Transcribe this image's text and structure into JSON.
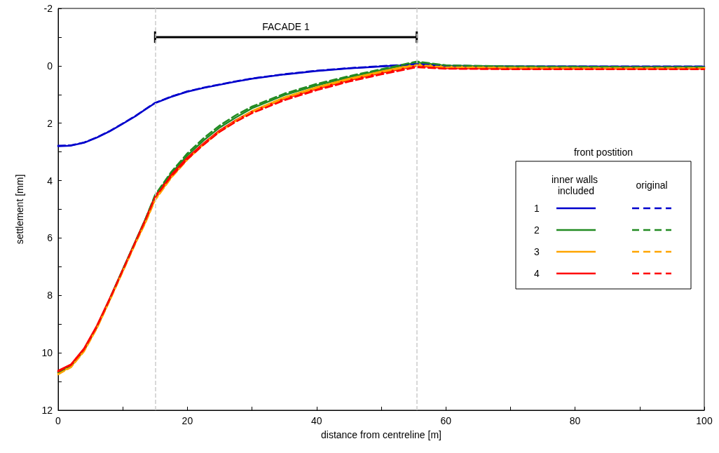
{
  "chart_data": {
    "type": "line",
    "xlabel": "distance from centreline [m]",
    "ylabel": "settlement [mm]",
    "legend": "right",
    "legend_title": "front postition",
    "annotations": [
      "inner walls included",
      "original"
    ],
    "xlim": [
      0,
      100
    ],
    "xticks": [
      0,
      {
        "value": 10,
        "label": null
      },
      20,
      {
        "value": 30,
        "label": null
      },
      40,
      {
        "value": 50,
        "label": null
      },
      60,
      {
        "value": 70,
        "label": null
      },
      80,
      {
        "value": 90,
        "label": null
      },
      100
    ],
    "ylim": [
      12,
      -2
    ],
    "yticks": [
      -2,
      {
        "value": -1,
        "label": null
      },
      0,
      {
        "value": 1,
        "label": null
      },
      2,
      {
        "value": 3,
        "label": null
      },
      4,
      {
        "value": 5,
        "label": null
      },
      6,
      {
        "value": 7,
        "label": null
      },
      8,
      {
        "value": 9,
        "label": null
      },
      10,
      {
        "value": 11,
        "label": null
      },
      12
    ],
    "x": [
      0,
      2,
      4,
      6,
      8,
      10,
      12,
      13.5,
      15,
      17.5,
      20,
      22.5,
      25,
      27.5,
      30,
      35,
      40,
      45,
      50,
      55.5,
      60,
      70,
      80,
      90,
      100
    ],
    "ref_lines": [
      {
        "axis": "x",
        "value": 15,
        "label": null,
        "color": "#cccccc",
        "line_style": "dashed"
      },
      {
        "axis": "x",
        "value": 55.5,
        "label": null,
        "color": "#cccccc",
        "line_style": "dashed"
      }
    ],
    "series": [
      {
        "name": "FACADE 1",
        "color": "#000000",
        "line_style": "solid",
        "x": [
          15,
          55.5
        ],
        "values": [
          -1,
          -1
        ],
        "errors": [
          0.2,
          0.2
        ]
      },
      {
        "name": "1",
        "color": "#0000cc",
        "line_style": "solid",
        "values": [
          2.8,
          2.78,
          2.68,
          2.5,
          2.28,
          2.02,
          1.75,
          1.52,
          1.3,
          1.08,
          0.9,
          0.77,
          0.66,
          0.55,
          0.45,
          0.3,
          0.18,
          0.09,
          0.02,
          -0.04,
          0,
          0.02,
          0.02,
          0.03,
          0.03
        ]
      },
      {
        "name": "2",
        "color": "#228b22",
        "line_style": "solid",
        "values": [
          10.68,
          10.45,
          9.9,
          9.1,
          8.12,
          7.1,
          6.1,
          5.35,
          4.55,
          3.75,
          3.12,
          2.6,
          2.15,
          1.8,
          1.48,
          1.02,
          0.68,
          0.4,
          0.15,
          -0.12,
          0,
          0.03,
          0.04,
          0.05,
          0.05
        ]
      },
      {
        "name": "3",
        "color": "#ffa500",
        "line_style": "solid",
        "values": [
          10.72,
          10.48,
          9.93,
          9.12,
          8.15,
          7.15,
          6.15,
          5.45,
          4.65,
          3.88,
          3.25,
          2.72,
          2.27,
          1.9,
          1.58,
          1.1,
          0.75,
          0.45,
          0.2,
          -0.05,
          0.03,
          0.06,
          0.07,
          0.07,
          0.07
        ]
      },
      {
        "name": "4",
        "color": "#ff0000",
        "line_style": "solid",
        "values": [
          10.62,
          10.4,
          9.85,
          9.05,
          8.1,
          7.1,
          6.1,
          5.35,
          4.55,
          3.8,
          3.2,
          2.7,
          2.25,
          1.9,
          1.6,
          1.15,
          0.8,
          0.5,
          0.25,
          0,
          0.08,
          0.1,
          0.1,
          0.1,
          0.1
        ]
      },
      {
        "color": "#0000cc",
        "line_style": "dashed",
        "values": [
          2.78,
          2.77,
          2.67,
          2.49,
          2.27,
          2.01,
          1.74,
          1.51,
          1.29,
          1.07,
          0.89,
          0.76,
          0.65,
          0.54,
          0.44,
          0.29,
          0.17,
          0.08,
          0.01,
          -0.06,
          0,
          0.02,
          0.02,
          0.02,
          0.02
        ]
      },
      {
        "color": "#228b22",
        "line_style": "dashed",
        "values": [
          10.68,
          10.45,
          9.9,
          9.1,
          8.12,
          7.1,
          6.1,
          5.35,
          4.5,
          3.7,
          3.05,
          2.52,
          2.08,
          1.72,
          1.42,
          0.97,
          0.63,
          0.36,
          0.12,
          -0.15,
          -0.02,
          0.02,
          0.03,
          0.04,
          0.04
        ]
      },
      {
        "color": "#ffa500",
        "line_style": "dashed",
        "values": [
          10.75,
          10.5,
          9.95,
          9.14,
          8.17,
          7.17,
          6.17,
          5.47,
          4.68,
          3.9,
          3.27,
          2.74,
          2.29,
          1.92,
          1.6,
          1.12,
          0.77,
          0.47,
          0.22,
          -0.03,
          0.05,
          0.07,
          0.08,
          0.08,
          0.08
        ]
      },
      {
        "color": "#ff0000",
        "line_style": "dashed",
        "values": [
          10.65,
          10.42,
          9.88,
          9.08,
          8.12,
          7.12,
          6.12,
          5.38,
          4.58,
          3.85,
          3.25,
          2.75,
          2.3,
          1.95,
          1.65,
          1.2,
          0.85,
          0.55,
          0.3,
          0.05,
          0.1,
          0.12,
          0.12,
          0.12,
          0.12
        ]
      }
    ]
  }
}
